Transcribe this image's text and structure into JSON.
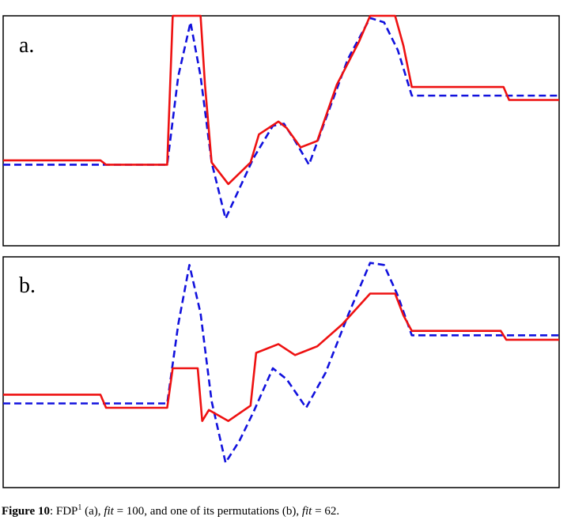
{
  "chart_data": [
    {
      "type": "line",
      "panel_label": "a.",
      "ylim": [
        0,
        100
      ],
      "xlim": [
        0,
        100
      ],
      "grid": false,
      "legend": "none",
      "series": [
        {
          "color": "#ee1111",
          "style": "solid",
          "points": [
            [
              0,
              33
            ],
            [
              17.5,
              33
            ],
            [
              18.5,
              31
            ],
            [
              29.5,
              31
            ],
            [
              30.5,
              100
            ],
            [
              35.5,
              100
            ],
            [
              36.3,
              68
            ],
            [
              37.5,
              32
            ],
            [
              40.5,
              22
            ],
            [
              44.5,
              32
            ],
            [
              46,
              45
            ],
            [
              49.5,
              51
            ],
            [
              51,
              48
            ],
            [
              53.5,
              39
            ],
            [
              56.5,
              42
            ],
            [
              60,
              68
            ],
            [
              64,
              88
            ],
            [
              66,
              100
            ],
            [
              70.5,
              100
            ],
            [
              72,
              86
            ],
            [
              73.5,
              67
            ],
            [
              90,
              67
            ],
            [
              91,
              61
            ],
            [
              100,
              61
            ]
          ]
        },
        {
          "color": "#1111dd",
          "style": "dashed",
          "points": [
            [
              0,
              31
            ],
            [
              29.5,
              31
            ],
            [
              31.5,
              72
            ],
            [
              33.7,
              97
            ],
            [
              35.5,
              72
            ],
            [
              37.5,
              32
            ],
            [
              40,
              6
            ],
            [
              42.5,
              20
            ],
            [
              45,
              34
            ],
            [
              48.5,
              49
            ],
            [
              50.5,
              50
            ],
            [
              52.5,
              42
            ],
            [
              55,
              31
            ],
            [
              58,
              52
            ],
            [
              62,
              80
            ],
            [
              66,
              99
            ],
            [
              68.5,
              97
            ],
            [
              71,
              84
            ],
            [
              73.5,
              63
            ],
            [
              100,
              63
            ]
          ]
        }
      ]
    },
    {
      "type": "line",
      "panel_label": "b.",
      "ylim": [
        0,
        100
      ],
      "xlim": [
        0,
        100
      ],
      "grid": false,
      "legend": "none",
      "series": [
        {
          "color": "#ee1111",
          "style": "solid",
          "points": [
            [
              0,
              38
            ],
            [
              17.5,
              38
            ],
            [
              18.5,
              32
            ],
            [
              29.5,
              32
            ],
            [
              30.5,
              50
            ],
            [
              35,
              50
            ],
            [
              35.8,
              26
            ],
            [
              37,
              31
            ],
            [
              40.5,
              26
            ],
            [
              44.5,
              33
            ],
            [
              45.5,
              57
            ],
            [
              49.5,
              61
            ],
            [
              52.5,
              56
            ],
            [
              56.5,
              60
            ],
            [
              61,
              70
            ],
            [
              66,
              84
            ],
            [
              70.5,
              84
            ],
            [
              72,
              74
            ],
            [
              73.5,
              67
            ],
            [
              89.5,
              67
            ],
            [
              90.5,
              63
            ],
            [
              100,
              63
            ]
          ]
        },
        {
          "color": "#1111dd",
          "style": "dashed",
          "points": [
            [
              0,
              34
            ],
            [
              29.5,
              34
            ],
            [
              31.5,
              70
            ],
            [
              33.5,
              97
            ],
            [
              35.5,
              75
            ],
            [
              37.5,
              35
            ],
            [
              40,
              7
            ],
            [
              42.5,
              17
            ],
            [
              45,
              30
            ],
            [
              48.5,
              50
            ],
            [
              51,
              45
            ],
            [
              54.5,
              32
            ],
            [
              58,
              48
            ],
            [
              62,
              74
            ],
            [
              66,
              98
            ],
            [
              68.5,
              97
            ],
            [
              71,
              83
            ],
            [
              73.5,
              65
            ],
            [
              100,
              65
            ]
          ]
        }
      ]
    }
  ],
  "caption": {
    "label": "Figure 10",
    "p1": ": FDP",
    "sup": "1",
    "p2": " (a), ",
    "fit1_var": "fit",
    "p3": " = 100, and one of its permutations (b), ",
    "fit2_var": "fit",
    "p4": " = 62."
  }
}
